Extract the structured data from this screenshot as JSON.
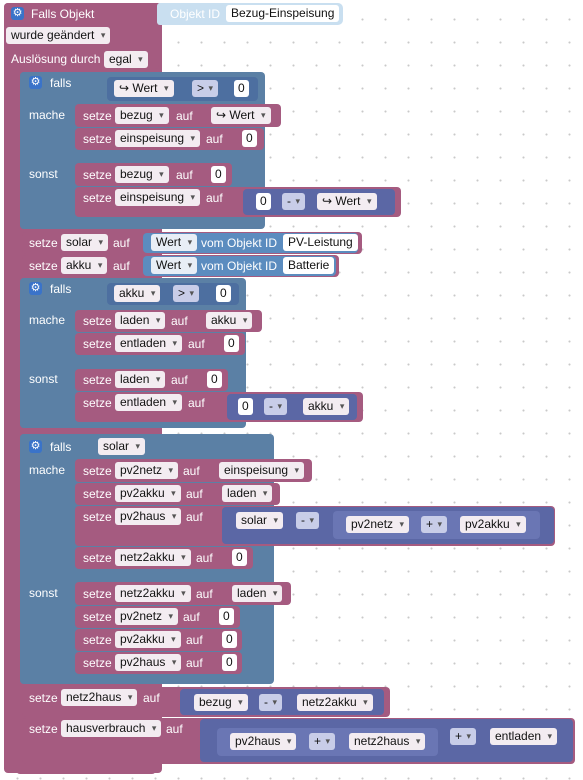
{
  "trigger": {
    "title": "Falls Objekt",
    "object_label": "Objekt ID",
    "object_value": "Bezug-Einspeisung",
    "change": "wurde geändert",
    "cause_label": "Auslösung durch",
    "cause_value": "egal"
  },
  "kw": {
    "if": "falls",
    "do": "mache",
    "else": "sonst",
    "set": "setze",
    "to": "auf",
    "value": "Wert",
    "of_object": "vom Objekt ID",
    "arrow_value": "↪ Wert"
  },
  "ops": {
    "gt": ">",
    "minus": "-",
    "plus": "+"
  },
  "vars": {
    "bezug": "bezug",
    "einspeisung": "einspeisung",
    "solar": "solar",
    "akku": "akku",
    "laden": "laden",
    "entladen": "entladen",
    "pv2netz": "pv2netz",
    "pv2akku": "pv2akku",
    "pv2haus": "pv2haus",
    "netz2akku": "netz2akku",
    "netz2haus": "netz2haus",
    "hausverbrauch": "hausverbrauch"
  },
  "objects": {
    "pv": "PV-Leistung",
    "battery": "Batterie"
  },
  "nums": {
    "zero": "0"
  },
  "icons": {
    "gear": "gear-icon"
  }
}
